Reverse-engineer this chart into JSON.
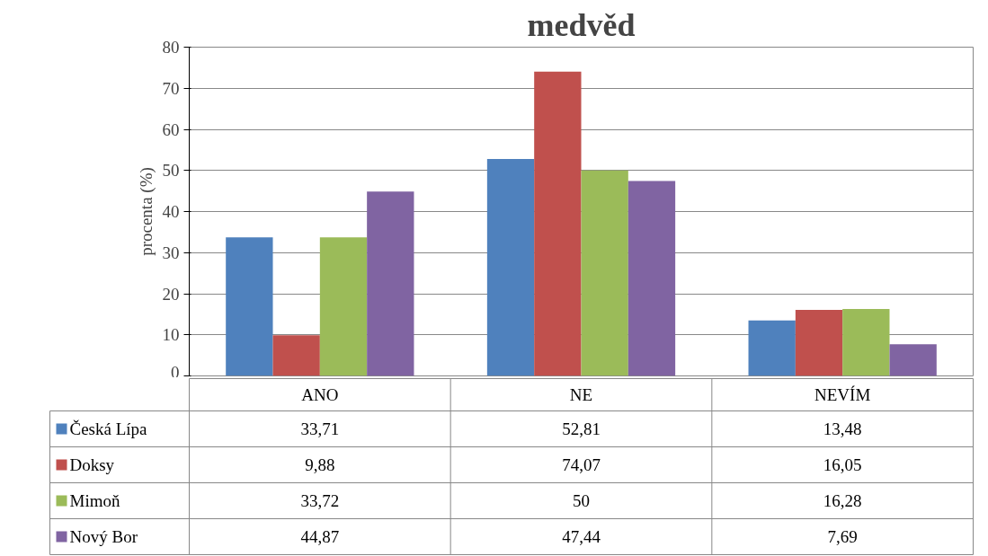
{
  "chart_data": {
    "type": "bar",
    "title": "medvěd",
    "ylabel": "procenta (%)",
    "categories": [
      "ANO",
      "NE",
      "NEVÍM"
    ],
    "series": [
      {
        "name": "Česká Lípa",
        "color": "#4f81bd",
        "values": [
          33.71,
          52.81,
          13.48
        ],
        "value_labels": [
          "33,71",
          "52,81",
          "13,48"
        ]
      },
      {
        "name": "Doksy",
        "color": "#c0504d",
        "values": [
          9.88,
          74.07,
          16.05
        ],
        "value_labels": [
          "9,88",
          "74,07",
          "16,05"
        ]
      },
      {
        "name": "Mimoň",
        "color": "#9bbb59",
        "values": [
          33.72,
          50,
          16.28
        ],
        "value_labels": [
          "33,72",
          "50",
          "16,28"
        ]
      },
      {
        "name": "Nový Bor",
        "color": "#8064a2",
        "values": [
          44.87,
          47.44,
          7.69
        ],
        "value_labels": [
          "44,87",
          "47,44",
          "7,69"
        ]
      }
    ],
    "ylim": [
      0,
      80
    ],
    "yticks": [
      0,
      10,
      20,
      30,
      40,
      50,
      60,
      70,
      80
    ],
    "grid": "y",
    "legend": "bottom left"
  }
}
